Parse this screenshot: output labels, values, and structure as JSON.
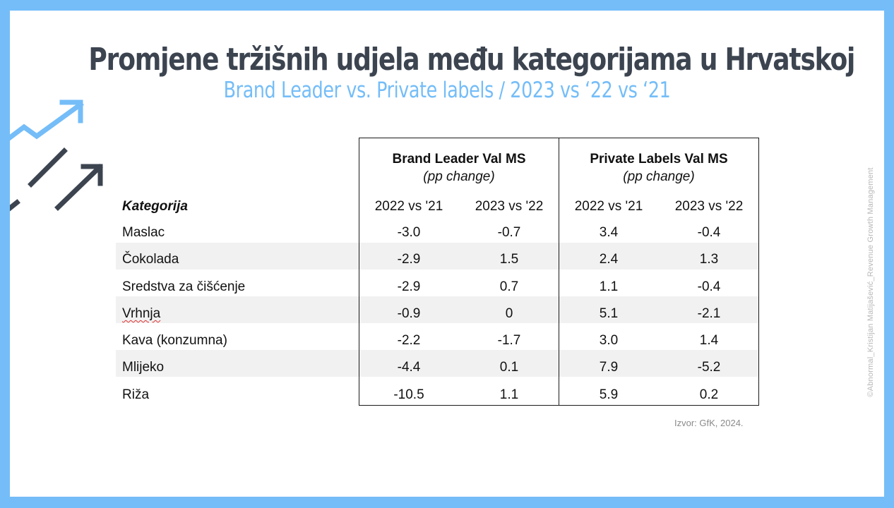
{
  "title": "Promjene tržišnih udjela među kategorijama u Hrvatskoj",
  "subtitle": "Brand Leader vs. Private labels / 2023 vs ‘22 vs ‘21",
  "watermark": "©Abnormal_Kristijan Matijašević_Revenue Growth Management",
  "source": "Izvor: GfK, 2024.",
  "colors": {
    "accent": "#74bdf8",
    "title": "#3c4450",
    "stripe": "#f1f1f1"
  },
  "decoration": {
    "icon": "trend-arrows-icon"
  },
  "table": {
    "category_header": "Kategorija",
    "groups": [
      {
        "title": "Brand Leader Val MS",
        "subtitle": "(pp change)",
        "years": [
          "2022 vs '21",
          "2023 vs '22"
        ]
      },
      {
        "title": "Private Labels Val MS",
        "subtitle": "(pp change)",
        "years": [
          "2022 vs '21",
          "2023 vs '22"
        ]
      }
    ],
    "rows": [
      {
        "label": "Maslac",
        "values": [
          "-3.0",
          "-0.7",
          "3.4",
          "-0.4"
        ]
      },
      {
        "label": "Čokolada",
        "values": [
          "-2.9",
          "1.5",
          "2.4",
          "1.3"
        ]
      },
      {
        "label": "Sredstva za čišćenje",
        "values": [
          "-2.9",
          "0.7",
          "1.1",
          "-0.4"
        ]
      },
      {
        "label": "Vrhnja",
        "values": [
          "-0.9",
          "0",
          "5.1",
          "-2.1"
        ]
      },
      {
        "label": "Kava (konzumna)",
        "values": [
          "-2.2",
          "-1.7",
          "3.0",
          "1.4"
        ]
      },
      {
        "label": "Mlijeko",
        "values": [
          "-4.4",
          "0.1",
          "7.9",
          "-5.2"
        ]
      },
      {
        "label": "Riža",
        "values": [
          "-10.5",
          "1.1",
          "5.9",
          "0.2"
        ]
      }
    ]
  }
}
